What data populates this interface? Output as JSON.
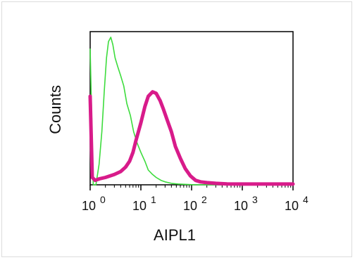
{
  "chart_data": {
    "type": "line",
    "title": "",
    "xlabel": "AIPL1",
    "ylabel": "Counts",
    "x_scale": "log",
    "xlim": [
      1,
      10000
    ],
    "x_ticks": [
      {
        "base": "10",
        "exp": "0",
        "value": 1
      },
      {
        "base": "10",
        "exp": "1",
        "value": 10
      },
      {
        "base": "10",
        "exp": "2",
        "value": 100
      },
      {
        "base": "10",
        "exp": "3",
        "value": 1000
      },
      {
        "base": "10",
        "exp": "4",
        "value": 10000
      }
    ],
    "ylim": [
      0,
      100
    ],
    "grid": false,
    "legend": "none",
    "series": [
      {
        "color": "#3ddc3d",
        "x": [
          1,
          1.15,
          1.3,
          1.5,
          1.7,
          1.9,
          2.1,
          2.3,
          2.55,
          2.8,
          3.1,
          3.5,
          4,
          4.6,
          5.3,
          6.2,
          7.2,
          8.5,
          10,
          12,
          14,
          17,
          20,
          25,
          30,
          40,
          55,
          80,
          120,
          200,
          400,
          1000,
          10000
        ],
        "values": [
          92,
          0,
          0,
          14,
          36,
          64,
          86,
          97,
          100,
          95,
          86,
          80,
          74,
          67,
          55,
          47,
          36,
          28,
          22,
          16,
          10,
          7,
          5,
          3,
          2,
          1,
          0.5,
          0.3,
          0,
          0,
          0,
          0,
          0
        ]
      },
      {
        "color": "#d81b8a",
        "x": [
          1,
          1.1,
          1.25,
          1.5,
          2,
          3,
          4,
          5,
          6,
          7,
          8,
          10,
          12,
          14,
          17,
          20,
          24,
          28,
          33,
          40,
          48,
          60,
          75,
          95,
          120,
          150,
          200,
          300,
          500,
          1000,
          3000,
          10000
        ],
        "values": [
          60,
          5,
          3,
          4,
          5,
          7,
          9,
          12,
          16,
          22,
          30,
          42,
          53,
          60,
          63,
          62,
          57,
          51,
          44,
          36,
          26,
          18,
          11,
          6,
          3,
          2,
          1.5,
          1,
          0.6,
          0.5,
          0.5,
          0.5
        ]
      }
    ]
  }
}
